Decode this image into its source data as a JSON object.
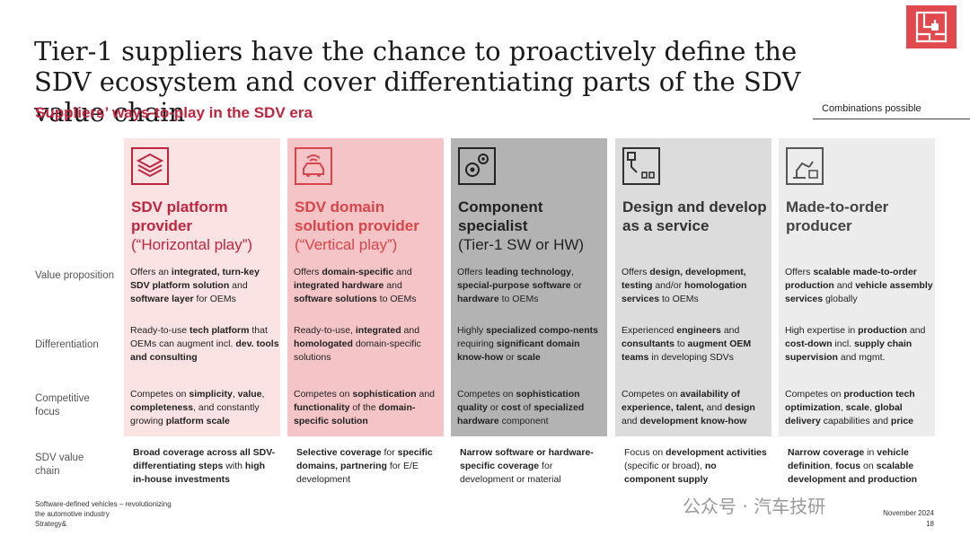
{
  "title": "Tier-1 suppliers have the chance to proactively define the SDV ecosystem and cover differentiating parts of the SDV value chain",
  "subtitle": "Suppliers’ ways-to-play in the SDV era",
  "combinations_note": "Combinations possible",
  "row_labels": {
    "value": "Value proposition",
    "differentiation": "Differentiation",
    "competitive": "Competitive focus",
    "chain": "SDV value chain"
  },
  "colors": {
    "col1": "#fbe3e3",
    "col2": "#f5c4c6",
    "col3": "#b3b3b3",
    "col4": "#dcdcdc",
    "col5": "#ececec",
    "accent": "#c0253f"
  },
  "columns": [
    {
      "icon": "layers-icon",
      "head": "SDV platform provider",
      "head_sub": "(“Horizontal play”)",
      "value": [
        [
          "Offers an ",
          ""
        ],
        [
          "integrated, turn-key SDV platform solution",
          "b"
        ],
        [
          " and ",
          ""
        ],
        [
          "software layer",
          "b"
        ],
        [
          " for OEMs",
          ""
        ]
      ],
      "diff": [
        [
          "Ready-to-use ",
          ""
        ],
        [
          "tech platform",
          "b"
        ],
        [
          " that OEMs can augment incl. ",
          ""
        ],
        [
          "dev. tools and consulting",
          "b"
        ]
      ],
      "comp": [
        [
          "Competes on ",
          ""
        ],
        [
          "simplicity",
          "b"
        ],
        [
          ", ",
          ""
        ],
        [
          "value",
          "b"
        ],
        [
          ", ",
          ""
        ],
        [
          "completeness",
          "b"
        ],
        [
          ", and constantly growing ",
          ""
        ],
        [
          "platform scale",
          "b"
        ]
      ],
      "chain": [
        [
          "Broad coverage across all SDV-differentiating steps",
          "b"
        ],
        [
          " with ",
          ""
        ],
        [
          "high in-house investments",
          "b"
        ]
      ]
    },
    {
      "icon": "car-signal-icon",
      "head": "SDV domain solution provider",
      "head_sub": "(“Vertical play”)",
      "value": [
        [
          "Offers ",
          ""
        ],
        [
          "domain-specific",
          "b"
        ],
        [
          " and ",
          ""
        ],
        [
          "integrated hardware",
          "b"
        ],
        [
          " and ",
          ""
        ],
        [
          "software solutions",
          "b"
        ],
        [
          " to OEMs",
          ""
        ]
      ],
      "diff": [
        [
          "Ready-to-use, ",
          ""
        ],
        [
          "integrated",
          "b"
        ],
        [
          " and ",
          ""
        ],
        [
          "homologated",
          "b"
        ],
        [
          " domain-specific solutions",
          ""
        ]
      ],
      "comp": [
        [
          "Competes on ",
          ""
        ],
        [
          "sophistication",
          "b"
        ],
        [
          " and ",
          ""
        ],
        [
          "functionality",
          "b"
        ],
        [
          " of the ",
          ""
        ],
        [
          "domain-specific solution",
          "b"
        ]
      ],
      "chain": [
        [
          "Selective coverage",
          "b"
        ],
        [
          " for ",
          ""
        ],
        [
          "specific domains, partnering",
          "b"
        ],
        [
          " for E/E development",
          ""
        ]
      ]
    },
    {
      "icon": "gears-icon",
      "head": "Component specialist",
      "head_sub": "(Tier-1 SW or HW)",
      "value": [
        [
          "Offers ",
          ""
        ],
        [
          "leading technology",
          "b"
        ],
        [
          ", ",
          ""
        ],
        [
          "special-purpose software",
          "b"
        ],
        [
          " or ",
          ""
        ],
        [
          "hardware",
          "b"
        ],
        [
          " to OEMs",
          ""
        ]
      ],
      "diff": [
        [
          "Highly ",
          ""
        ],
        [
          "specialized compo-nents",
          "b"
        ],
        [
          " requiring ",
          ""
        ],
        [
          "significant domain know-how",
          "b"
        ],
        [
          " or ",
          ""
        ],
        [
          "scale",
          "b"
        ]
      ],
      "comp": [
        [
          "Competes on ",
          ""
        ],
        [
          "sophistication quality",
          "b"
        ],
        [
          " or ",
          ""
        ],
        [
          "cost",
          "b"
        ],
        [
          " of ",
          ""
        ],
        [
          "specialized hardware",
          "b"
        ],
        [
          " component",
          ""
        ]
      ],
      "chain": [
        [
          "Narrow software or hardware-specific coverage",
          "b"
        ],
        [
          " for development or material",
          ""
        ]
      ]
    },
    {
      "icon": "design-icon",
      "head": "Design and develop as a service",
      "head_sub": "",
      "value": [
        [
          "Offers ",
          ""
        ],
        [
          "design, development, testing",
          "b"
        ],
        [
          " and/or ",
          ""
        ],
        [
          "homologation services",
          "b"
        ],
        [
          " to OEMs",
          ""
        ]
      ],
      "diff": [
        [
          "Experienced ",
          ""
        ],
        [
          "engineers",
          "b"
        ],
        [
          " and ",
          ""
        ],
        [
          "consultants",
          "b"
        ],
        [
          " to ",
          ""
        ],
        [
          "augment OEM teams",
          "b"
        ],
        [
          " in developing SDVs",
          ""
        ]
      ],
      "comp": [
        [
          "Competes on ",
          ""
        ],
        [
          "availability of experience, talent,",
          "b"
        ],
        [
          " and ",
          ""
        ],
        [
          "design",
          "b"
        ],
        [
          " and ",
          ""
        ],
        [
          "development know-how",
          "b"
        ]
      ],
      "chain": [
        [
          "Focus on ",
          ""
        ],
        [
          "development activities",
          "b"
        ],
        [
          " (specific or broad), ",
          ""
        ],
        [
          "no component supply",
          "b"
        ]
      ]
    },
    {
      "icon": "robot-arm-icon",
      "head": "Made-to-order producer",
      "head_sub": "",
      "value": [
        [
          "Offers ",
          ""
        ],
        [
          "scalable made-to-order production",
          "b"
        ],
        [
          " and ",
          ""
        ],
        [
          "vehicle assembly services",
          "b"
        ],
        [
          " globally",
          ""
        ]
      ],
      "diff": [
        [
          "High expertise in ",
          ""
        ],
        [
          "production",
          "b"
        ],
        [
          " and ",
          ""
        ],
        [
          "cost-down",
          "b"
        ],
        [
          " incl. ",
          ""
        ],
        [
          "supply chain supervision",
          "b"
        ],
        [
          " and mgmt.",
          ""
        ]
      ],
      "comp": [
        [
          "Competes on ",
          ""
        ],
        [
          "production tech optimization",
          "b"
        ],
        [
          ", ",
          ""
        ],
        [
          "scale",
          "b"
        ],
        [
          ", ",
          ""
        ],
        [
          "global delivery",
          "b"
        ],
        [
          " capabilities and ",
          ""
        ],
        [
          "price",
          "b"
        ]
      ],
      "chain": [
        [
          "Narrow coverage",
          "b"
        ],
        [
          " in ",
          ""
        ],
        [
          "vehicle definition",
          "b"
        ],
        [
          ", ",
          ""
        ],
        [
          "focus",
          "b"
        ],
        [
          " on ",
          ""
        ],
        [
          "scalable development and production",
          "b"
        ]
      ]
    }
  ],
  "footer": {
    "left_line1": "Software-defined vehicles – revolutionizing",
    "left_line2": "the automotive industry",
    "left_line3": "Strategy&",
    "date": "November 2024",
    "page": "18"
  },
  "watermark": "公众号 · 汽车技研"
}
